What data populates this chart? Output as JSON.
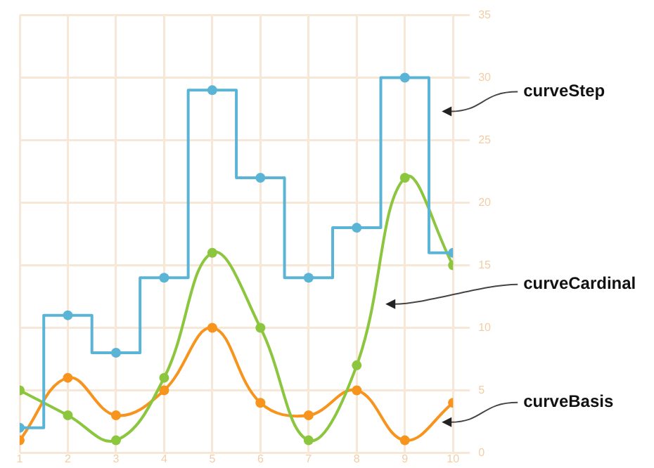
{
  "chart_data": {
    "type": "line",
    "x": [
      1,
      2,
      3,
      4,
      5,
      6,
      7,
      8,
      9,
      10
    ],
    "series": [
      {
        "name": "curveStep",
        "type": "step",
        "color": "#5ab4d6",
        "values": [
          2,
          11,
          8,
          14,
          29,
          22,
          14,
          18,
          30,
          16
        ]
      },
      {
        "name": "curveCardinal",
        "type": "line",
        "color": "#8cc63f",
        "values": [
          5,
          3,
          1,
          6,
          16,
          10,
          1,
          7,
          22,
          15
        ]
      },
      {
        "name": "curveBasis",
        "type": "line",
        "color": "#f7941d",
        "values": [
          1,
          6,
          3,
          5,
          10,
          4,
          3,
          5,
          1,
          4
        ]
      }
    ],
    "xlim": [
      1,
      10
    ],
    "xticks": [
      1,
      2,
      3,
      4,
      5,
      6,
      7,
      8,
      9,
      10
    ],
    "ylim": [
      0,
      35
    ],
    "yticks": [
      0,
      5,
      10,
      15,
      20,
      25,
      30,
      35
    ],
    "grid": true,
    "legend": false,
    "marker": "circle",
    "line_style": "solid"
  }
}
